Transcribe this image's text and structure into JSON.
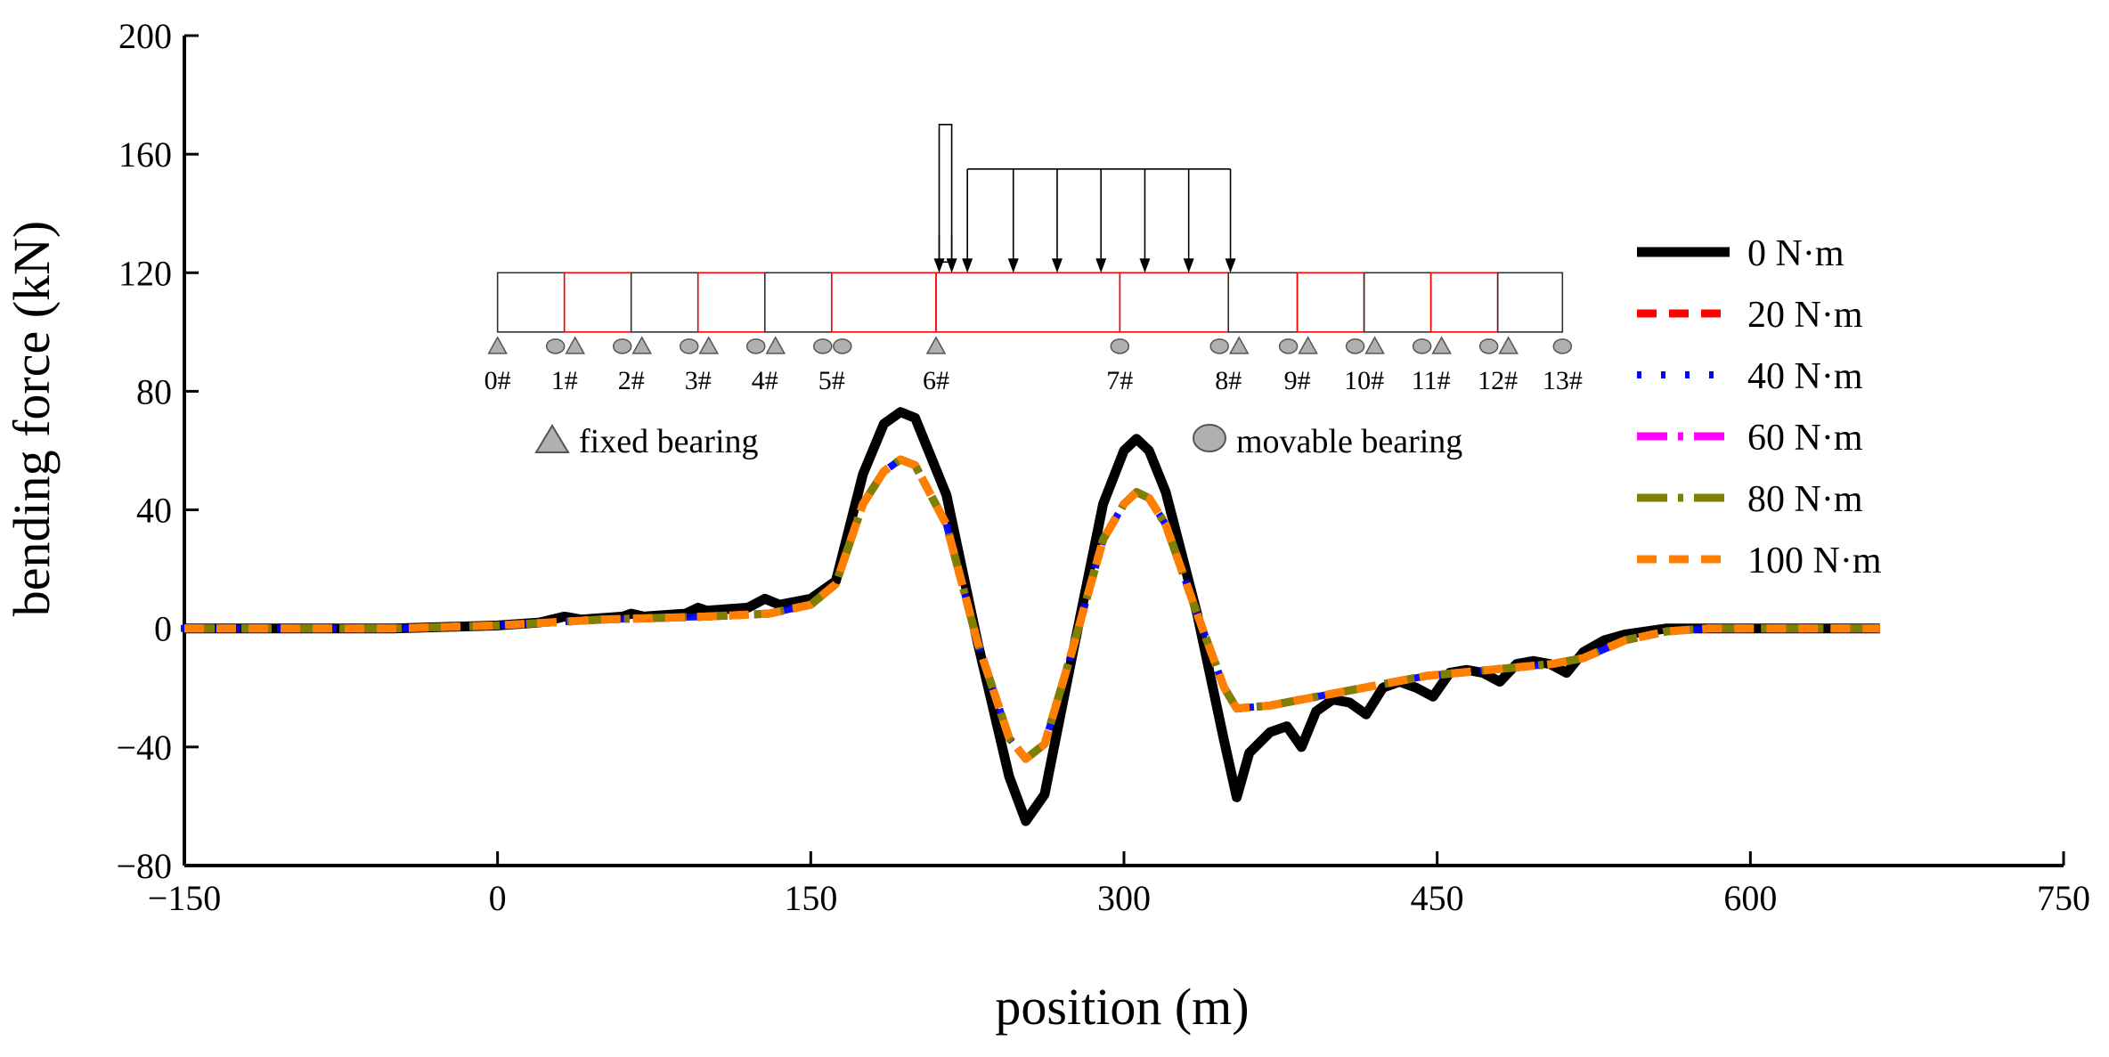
{
  "chart_data": {
    "type": "line",
    "title": "",
    "xlabel": "position (m)",
    "ylabel": "bending force (kN)",
    "xlim": [
      -150,
      750
    ],
    "ylim": [
      -80,
      200
    ],
    "xticks": [
      -150,
      0,
      150,
      300,
      450,
      600,
      750
    ],
    "xtick_labels": [
      "−150",
      "0",
      "150",
      "300",
      "450",
      "600",
      "750"
    ],
    "yticks": [
      -80,
      -40,
      0,
      40,
      80,
      120,
      160,
      200
    ],
    "ytick_labels": [
      "−80",
      "−40",
      "0",
      "40",
      "80",
      "120",
      "160",
      "200"
    ],
    "grid": false,
    "legend_position": "right",
    "series": [
      {
        "name": "0 N·m",
        "color": "#000000",
        "style": "solid",
        "x": [
          -150,
          -100,
          -50,
          0,
          20,
          32,
          40,
          60,
          64,
          70,
          90,
          96,
          100,
          120,
          128,
          135,
          150,
          162,
          175,
          185,
          193,
          200,
          215,
          230,
          245,
          253,
          262,
          275,
          290,
          300,
          306,
          312,
          320,
          335,
          348,
          354,
          360,
          370,
          378,
          385,
          392,
          400,
          408,
          416,
          424,
          432,
          440,
          448,
          456,
          464,
          472,
          480,
          488,
          496,
          504,
          512,
          520,
          530,
          540,
          560,
          580,
          600,
          620,
          640,
          662
        ],
        "y": [
          0,
          0,
          0,
          1,
          2,
          4,
          3,
          4,
          5,
          4,
          5,
          7,
          6,
          7,
          10,
          8,
          10,
          16,
          52,
          69,
          73,
          71,
          45,
          -5,
          -50,
          -65,
          -56,
          -10,
          42,
          60,
          64,
          60,
          46,
          5,
          -38,
          -57,
          -42,
          -35,
          -33,
          -40,
          -28,
          -24,
          -25,
          -29,
          -20,
          -18,
          -20,
          -23,
          -15,
          -14,
          -15,
          -18,
          -12,
          -11,
          -12,
          -15,
          -8,
          -4,
          -2,
          0,
          0,
          0,
          0,
          0,
          0
        ]
      },
      {
        "name": "20 N·m",
        "color": "#ff0000",
        "style": "dash",
        "x": [
          -150,
          -100,
          -50,
          0,
          50,
          100,
          130,
          150,
          162,
          175,
          185,
          193,
          200,
          215,
          230,
          245,
          253,
          262,
          275,
          290,
          300,
          306,
          312,
          320,
          335,
          348,
          354,
          370,
          385,
          400,
          415,
          430,
          445,
          460,
          475,
          490,
          505,
          520,
          540,
          560,
          580,
          600,
          620,
          640,
          662
        ],
        "y": [
          0,
          0,
          0,
          1,
          3,
          4,
          5,
          8,
          15,
          42,
          53,
          57,
          55,
          35,
          -5,
          -37,
          -44,
          -39,
          -8,
          30,
          42,
          46,
          44,
          35,
          5,
          -20,
          -27,
          -26,
          -24,
          -22,
          -20,
          -18,
          -16,
          -15,
          -14,
          -13,
          -12,
          -10,
          -4,
          -1,
          0,
          0,
          0,
          0,
          0
        ]
      },
      {
        "name": "40 N·m",
        "color": "#0000ff",
        "style": "dot",
        "x": [
          -150,
          -100,
          -50,
          0,
          50,
          100,
          130,
          150,
          162,
          175,
          185,
          193,
          200,
          215,
          230,
          245,
          253,
          262,
          275,
          290,
          300,
          306,
          312,
          320,
          335,
          348,
          354,
          370,
          385,
          400,
          415,
          430,
          445,
          460,
          475,
          490,
          505,
          520,
          540,
          560,
          580,
          600,
          620,
          640,
          662
        ],
        "y": [
          0,
          0,
          0,
          1,
          3,
          4,
          5,
          8,
          15,
          42,
          53,
          57,
          55,
          35,
          -5,
          -37,
          -44,
          -39,
          -8,
          30,
          42,
          46,
          44,
          35,
          5,
          -20,
          -27,
          -26,
          -24,
          -22,
          -20,
          -18,
          -16,
          -15,
          -14,
          -13,
          -12,
          -10,
          -4,
          -1,
          0,
          0,
          0,
          0,
          0
        ]
      },
      {
        "name": "60 N·m",
        "color": "#ff00ff",
        "style": "dashdot",
        "x": [
          -150,
          -100,
          -50,
          0,
          50,
          100,
          130,
          150,
          162,
          175,
          185,
          193,
          200,
          215,
          230,
          245,
          253,
          262,
          275,
          290,
          300,
          306,
          312,
          320,
          335,
          348,
          354,
          370,
          385,
          400,
          415,
          430,
          445,
          460,
          475,
          490,
          505,
          520,
          540,
          560,
          580,
          600,
          620,
          640,
          662
        ],
        "y": [
          0,
          0,
          0,
          1,
          3,
          4,
          5,
          8,
          15,
          42,
          53,
          57,
          55,
          35,
          -5,
          -37,
          -44,
          -39,
          -8,
          30,
          42,
          46,
          44,
          35,
          5,
          -20,
          -27,
          -26,
          -24,
          -22,
          -20,
          -18,
          -16,
          -15,
          -14,
          -13,
          -12,
          -10,
          -4,
          -1,
          0,
          0,
          0,
          0,
          0
        ]
      },
      {
        "name": "80 N·m",
        "color": "#808000",
        "style": "dashdot",
        "x": [
          -150,
          -100,
          -50,
          0,
          50,
          100,
          130,
          150,
          162,
          175,
          185,
          193,
          200,
          215,
          230,
          245,
          253,
          262,
          275,
          290,
          300,
          306,
          312,
          320,
          335,
          348,
          354,
          370,
          385,
          400,
          415,
          430,
          445,
          460,
          475,
          490,
          505,
          520,
          540,
          560,
          580,
          600,
          620,
          640,
          662
        ],
        "y": [
          0,
          0,
          0,
          1,
          3,
          4,
          5,
          8,
          15,
          42,
          53,
          57,
          55,
          35,
          -5,
          -37,
          -44,
          -39,
          -8,
          30,
          42,
          46,
          44,
          35,
          5,
          -20,
          -27,
          -26,
          -24,
          -22,
          -20,
          -18,
          -16,
          -15,
          -14,
          -13,
          -12,
          -10,
          -4,
          -1,
          0,
          0,
          0,
          0,
          0
        ]
      },
      {
        "name": "100 N·m",
        "color": "#ff8000",
        "style": "dash",
        "x": [
          -150,
          -100,
          -50,
          0,
          50,
          100,
          130,
          150,
          162,
          175,
          185,
          193,
          200,
          215,
          230,
          245,
          253,
          262,
          275,
          290,
          300,
          306,
          312,
          320,
          335,
          348,
          354,
          370,
          385,
          400,
          415,
          430,
          445,
          460,
          475,
          490,
          505,
          520,
          540,
          560,
          580,
          600,
          620,
          640,
          662
        ],
        "y": [
          0,
          0,
          0,
          1,
          3,
          4,
          5,
          8,
          15,
          42,
          53,
          57,
          55,
          35,
          -5,
          -37,
          -44,
          -39,
          -8,
          30,
          42,
          46,
          44,
          35,
          5,
          -20,
          -27,
          -26,
          -24,
          -22,
          -20,
          -18,
          -16,
          -15,
          -14,
          -13,
          -12,
          -10,
          -4,
          -1,
          0,
          0,
          0,
          0,
          0
        ]
      }
    ],
    "inset": {
      "description_text": "",
      "supports": [
        {
          "label": "0#",
          "x": 0,
          "bearings": [
            "fixed"
          ]
        },
        {
          "label": "1#",
          "x": 32,
          "bearings": [
            "movable",
            "fixed"
          ]
        },
        {
          "label": "2#",
          "x": 64,
          "bearings": [
            "movable",
            "fixed"
          ]
        },
        {
          "label": "3#",
          "x": 96,
          "bearings": [
            "movable",
            "fixed"
          ]
        },
        {
          "label": "4#",
          "x": 128,
          "bearings": [
            "movable",
            "fixed"
          ]
        },
        {
          "label": "5#",
          "x": 160,
          "bearings": [
            "movable",
            "movable"
          ]
        },
        {
          "label": "6#",
          "x": 210,
          "bearings": [
            "fixed"
          ]
        },
        {
          "label": "7#",
          "x": 298,
          "bearings": [
            "movable"
          ]
        },
        {
          "label": "8#",
          "x": 350,
          "bearings": [
            "movable",
            "fixed"
          ]
        },
        {
          "label": "9#",
          "x": 383,
          "bearings": [
            "movable",
            "fixed"
          ]
        },
        {
          "label": "10#",
          "x": 415,
          "bearings": [
            "movable",
            "fixed"
          ]
        },
        {
          "label": "11#",
          "x": 447,
          "bearings": [
            "movable",
            "fixed"
          ]
        },
        {
          "label": "12#",
          "x": 479,
          "bearings": [
            "movable",
            "fixed"
          ]
        },
        {
          "label": "13#",
          "x": 510,
          "bearings": [
            "movable"
          ]
        }
      ],
      "legend": {
        "fixed_label": "fixed bearing",
        "movable_label": "movable bearing"
      }
    }
  }
}
